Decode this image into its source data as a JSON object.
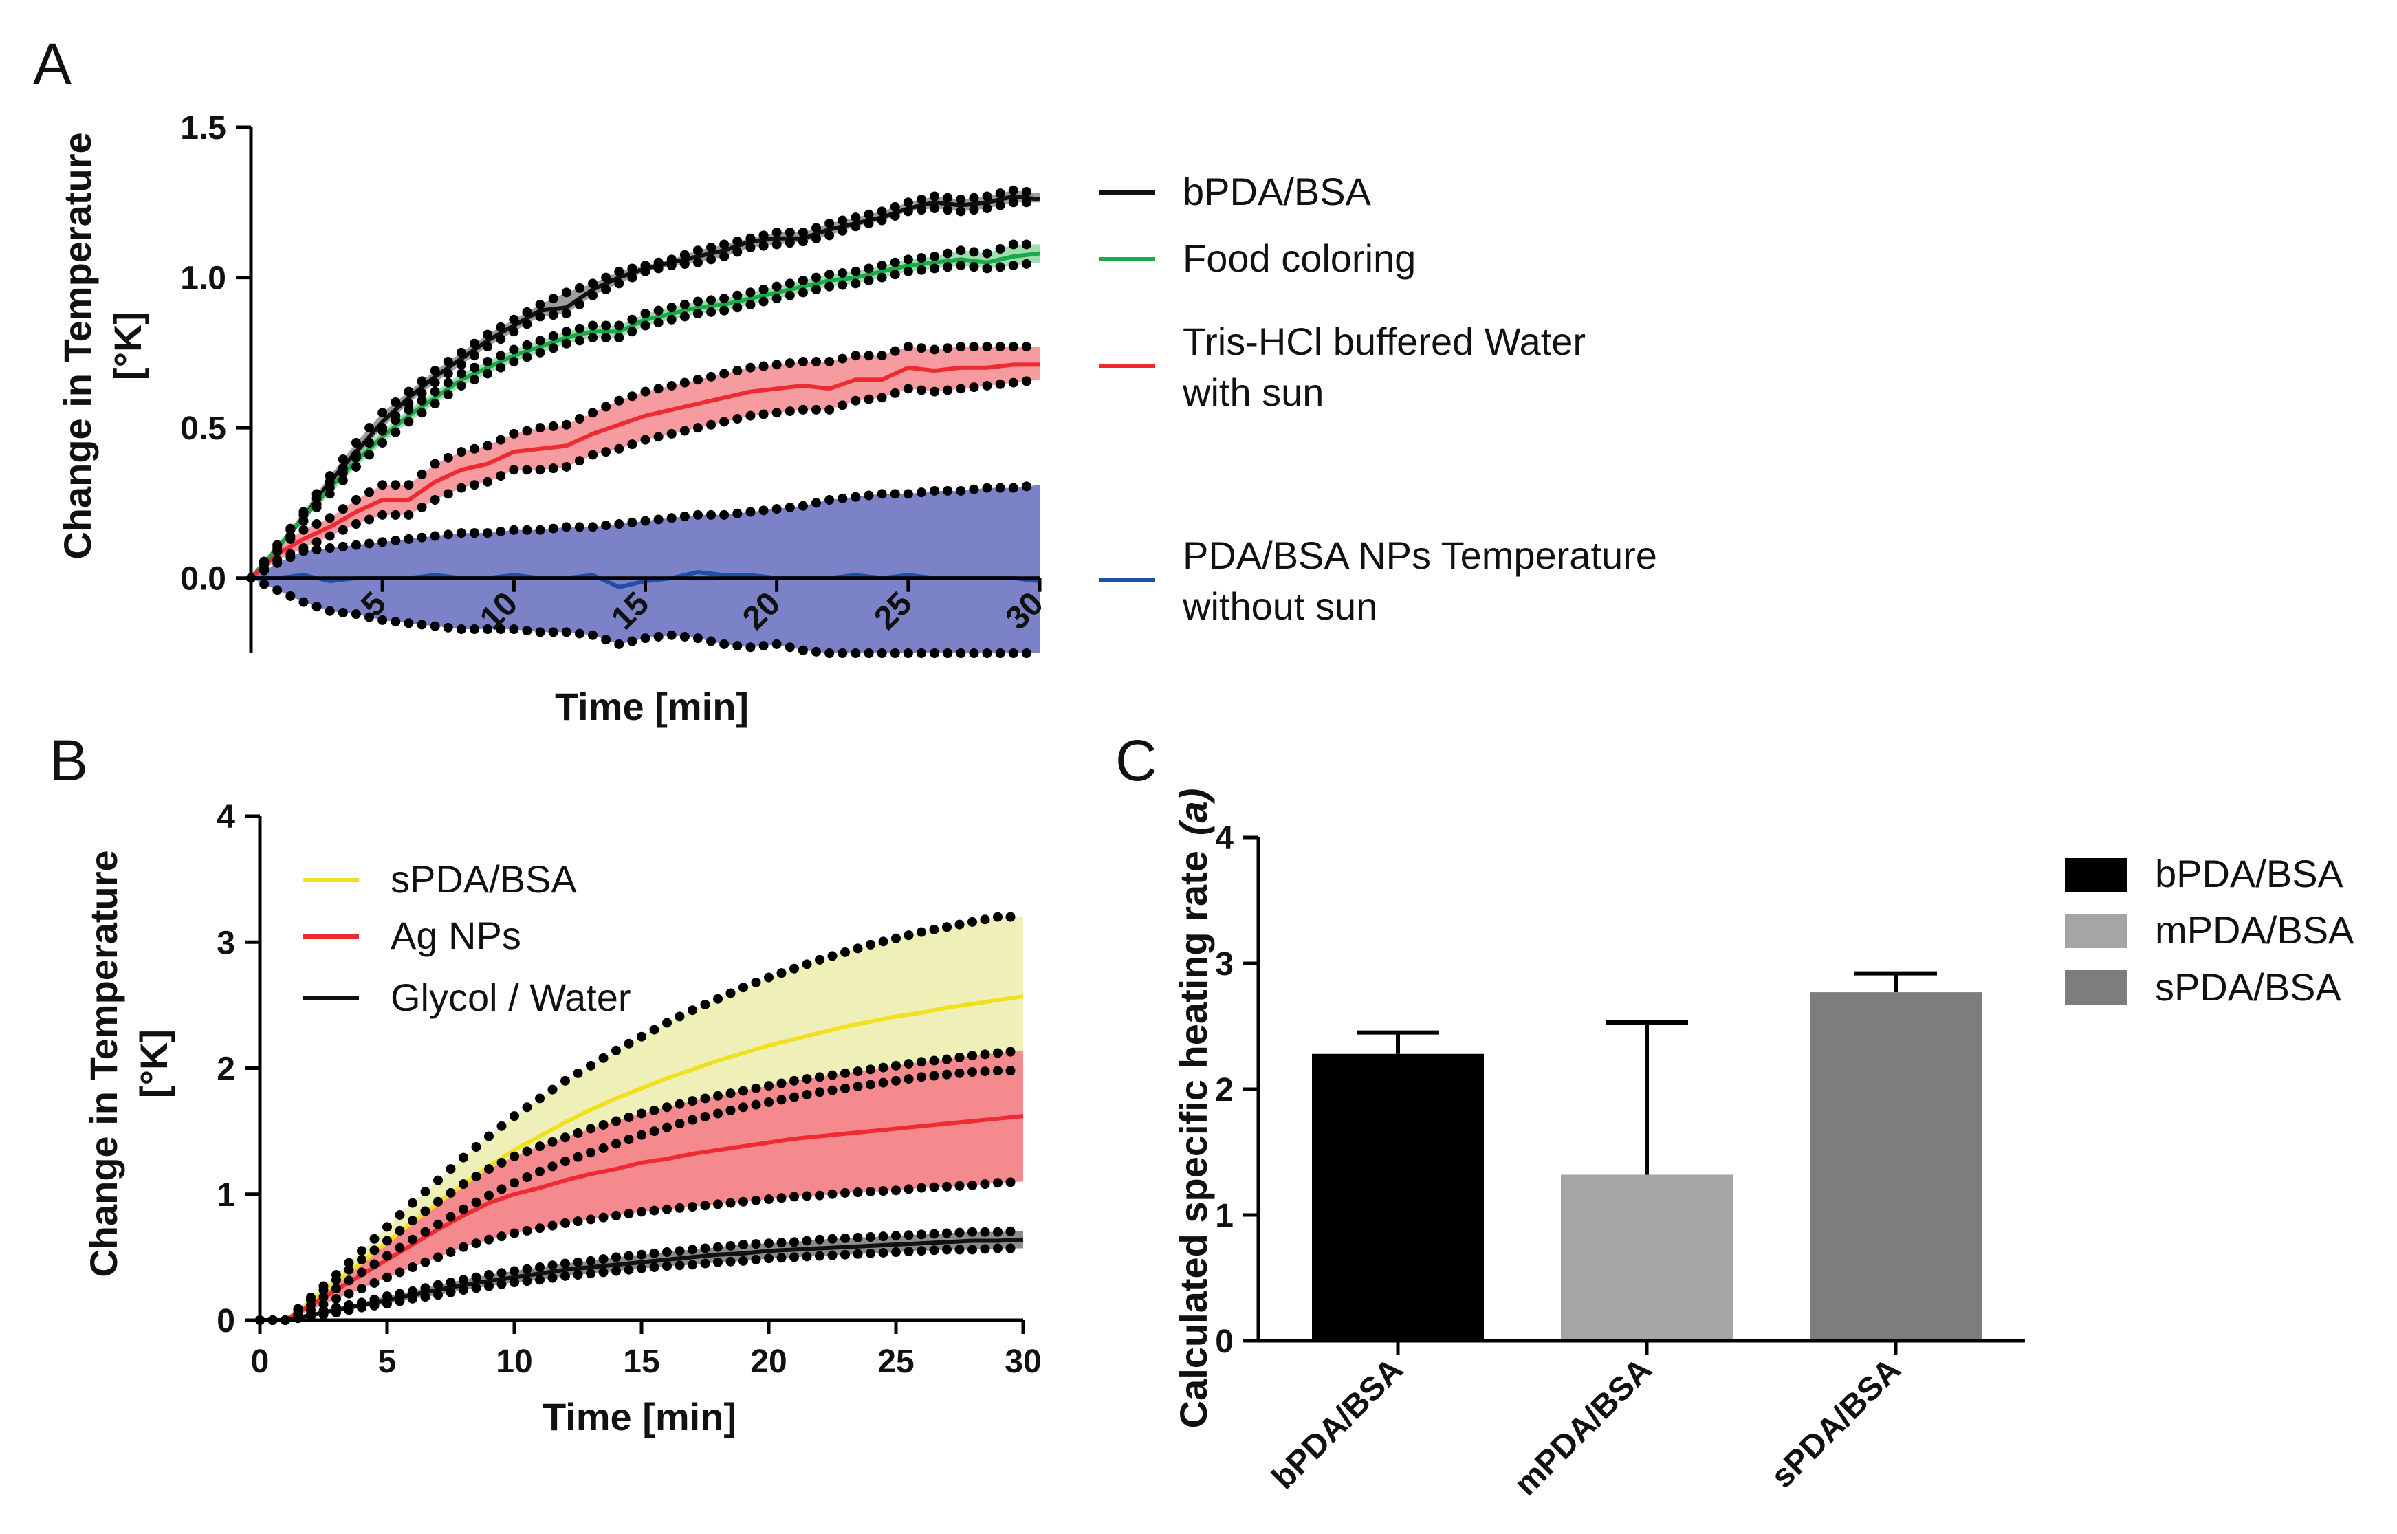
{
  "figure": {
    "panels": {
      "A": "A",
      "B": "B",
      "C": "C"
    },
    "colors": {
      "black": "#111111",
      "green": "#1aaa4a",
      "red": "#ee2a33",
      "blue": "#1f4fa8",
      "blueFill": "#7b82c8",
      "yellow": "#f0e020",
      "yellowFill": "#eef0b8",
      "redFill": "#f58a8e",
      "grayFill": "#8c8c8c",
      "barBlack": "#000000",
      "barLight": "#a5a5a8",
      "barDark": "#7d7d7d"
    }
  },
  "chart_data": [
    {
      "id": "A",
      "type": "line",
      "title": "",
      "xlabel": "Time [min]",
      "ylabel_line1": "Change in Temperature",
      "ylabel_line2": "[°K]",
      "xlim": [
        0,
        30
      ],
      "ylim": [
        -0.25,
        1.5
      ],
      "yticks": [
        0.0,
        0.5,
        1.0,
        1.5
      ],
      "yticklabels": [
        "0.0",
        "0.5",
        "1.0",
        "1.5"
      ],
      "xticks": [
        5,
        10,
        15,
        20,
        25,
        30
      ],
      "xticklabels": [
        "5",
        "10",
        "15",
        "20",
        "25",
        "30"
      ],
      "x": [
        0,
        1,
        2,
        3,
        4,
        5,
        6,
        7,
        8,
        9,
        10,
        11,
        12,
        13,
        14,
        15,
        16,
        17,
        18,
        19,
        20,
        21,
        22,
        23,
        24,
        25,
        26,
        27,
        28,
        29,
        30
      ],
      "series": [
        {
          "name": "bPDA/BSA",
          "legend": "bPDA/BSA",
          "color": "#111111",
          "fill": "#8c8c8c",
          "values": [
            0.0,
            0.1,
            0.2,
            0.32,
            0.42,
            0.52,
            0.6,
            0.67,
            0.73,
            0.79,
            0.84,
            0.89,
            0.9,
            0.96,
            1.0,
            1.03,
            1.05,
            1.07,
            1.09,
            1.12,
            1.13,
            1.13,
            1.16,
            1.18,
            1.2,
            1.23,
            1.25,
            1.24,
            1.25,
            1.27,
            1.26
          ],
          "lower": [
            0.0,
            0.09,
            0.19,
            0.3,
            0.4,
            0.5,
            0.58,
            0.65,
            0.71,
            0.77,
            0.82,
            0.87,
            0.88,
            0.94,
            0.98,
            1.02,
            1.04,
            1.05,
            1.07,
            1.1,
            1.11,
            1.12,
            1.14,
            1.17,
            1.19,
            1.22,
            1.23,
            1.22,
            1.23,
            1.25,
            1.25
          ],
          "upper": [
            0.0,
            0.11,
            0.22,
            0.34,
            0.45,
            0.55,
            0.62,
            0.69,
            0.75,
            0.81,
            0.86,
            0.91,
            0.95,
            0.98,
            1.02,
            1.04,
            1.06,
            1.09,
            1.11,
            1.13,
            1.15,
            1.15,
            1.18,
            1.2,
            1.22,
            1.25,
            1.27,
            1.26,
            1.27,
            1.29,
            1.28
          ]
        },
        {
          "name": "Food coloring",
          "legend": "Food coloring",
          "color": "#1aaa4a",
          "fill": "#5cc874",
          "values": [
            0.0,
            0.1,
            0.2,
            0.3,
            0.39,
            0.47,
            0.54,
            0.6,
            0.66,
            0.7,
            0.74,
            0.77,
            0.8,
            0.82,
            0.82,
            0.86,
            0.88,
            0.9,
            0.91,
            0.93,
            0.95,
            0.97,
            0.99,
            1.0,
            1.02,
            1.04,
            1.05,
            1.06,
            1.05,
            1.07,
            1.08
          ],
          "lower": [
            0.0,
            0.09,
            0.19,
            0.28,
            0.37,
            0.45,
            0.52,
            0.58,
            0.64,
            0.68,
            0.72,
            0.75,
            0.78,
            0.8,
            0.8,
            0.84,
            0.86,
            0.88,
            0.89,
            0.91,
            0.93,
            0.95,
            0.97,
            0.98,
            1.0,
            1.02,
            1.03,
            1.04,
            1.03,
            1.04,
            1.05
          ],
          "upper": [
            0.0,
            0.11,
            0.21,
            0.32,
            0.41,
            0.49,
            0.56,
            0.62,
            0.68,
            0.72,
            0.76,
            0.79,
            0.82,
            0.84,
            0.84,
            0.88,
            0.9,
            0.92,
            0.93,
            0.95,
            0.97,
            0.99,
            1.01,
            1.02,
            1.04,
            1.06,
            1.07,
            1.09,
            1.08,
            1.11,
            1.11
          ]
        },
        {
          "name": "Tris-HCl buffered Water with sun",
          "legend": "Tris-HCl buffered Water",
          "legend2": "with sun",
          "color": "#ee2a33",
          "fill": "#f58a8e",
          "values": [
            0.0,
            0.08,
            0.13,
            0.17,
            0.22,
            0.26,
            0.26,
            0.32,
            0.36,
            0.38,
            0.42,
            0.43,
            0.44,
            0.48,
            0.51,
            0.54,
            0.56,
            0.58,
            0.6,
            0.62,
            0.63,
            0.64,
            0.63,
            0.66,
            0.66,
            0.7,
            0.69,
            0.7,
            0.7,
            0.71,
            0.71
          ],
          "lower": [
            0.0,
            0.06,
            0.1,
            0.14,
            0.18,
            0.21,
            0.21,
            0.26,
            0.3,
            0.32,
            0.36,
            0.36,
            0.37,
            0.41,
            0.43,
            0.46,
            0.48,
            0.5,
            0.52,
            0.54,
            0.55,
            0.56,
            0.56,
            0.59,
            0.6,
            0.63,
            0.62,
            0.63,
            0.64,
            0.65,
            0.66
          ],
          "upper": [
            0.0,
            0.1,
            0.16,
            0.2,
            0.26,
            0.31,
            0.31,
            0.38,
            0.42,
            0.44,
            0.48,
            0.5,
            0.51,
            0.55,
            0.59,
            0.62,
            0.64,
            0.66,
            0.68,
            0.7,
            0.71,
            0.72,
            0.72,
            0.74,
            0.74,
            0.77,
            0.76,
            0.77,
            0.77,
            0.77,
            0.77
          ]
        },
        {
          "name": "PDA/BSA NPs Temperature without sun",
          "legend": "PDA/BSA NPs Temperature",
          "legend2": "without sun",
          "color": "#1f4fa8",
          "fill": "#7b82c8",
          "values": [
            0.0,
            0.0,
            0.01,
            -0.01,
            0.0,
            0.0,
            0.0,
            0.01,
            0.0,
            0.0,
            0.01,
            0.0,
            0.0,
            0.01,
            -0.03,
            -0.01,
            0.0,
            0.02,
            0.01,
            0.01,
            0.0,
            0.0,
            0.0,
            0.01,
            0.0,
            0.01,
            0.0,
            0.0,
            0.0,
            0.0,
            -0.01
          ],
          "lower": [
            0.0,
            -0.04,
            -0.08,
            -0.11,
            -0.12,
            -0.14,
            -0.15,
            -0.16,
            -0.17,
            -0.17,
            -0.17,
            -0.18,
            -0.18,
            -0.19,
            -0.22,
            -0.2,
            -0.19,
            -0.2,
            -0.22,
            -0.23,
            -0.22,
            -0.24,
            -0.25,
            -0.25,
            -0.25,
            -0.25,
            -0.25,
            -0.25,
            -0.25,
            -0.25,
            -0.25
          ],
          "upper": [
            0.0,
            0.05,
            0.09,
            0.1,
            0.11,
            0.12,
            0.13,
            0.14,
            0.15,
            0.15,
            0.16,
            0.16,
            0.17,
            0.17,
            0.18,
            0.19,
            0.2,
            0.21,
            0.21,
            0.22,
            0.23,
            0.24,
            0.26,
            0.27,
            0.28,
            0.28,
            0.29,
            0.29,
            0.3,
            0.3,
            0.31
          ]
        }
      ]
    },
    {
      "id": "B",
      "type": "line",
      "title": "",
      "xlabel": "Time [min]",
      "ylabel_line1": "Change in Temperature",
      "ylabel_line2": "[°K]",
      "xlim": [
        0,
        30
      ],
      "ylim": [
        0,
        4
      ],
      "yticks": [
        0,
        1,
        2,
        3,
        4
      ],
      "yticklabels": [
        "0",
        "1",
        "2",
        "3",
        "4"
      ],
      "xticks": [
        0,
        5,
        10,
        15,
        20,
        25,
        30
      ],
      "xticklabels": [
        "0",
        "5",
        "10",
        "15",
        "20",
        "25",
        "30"
      ],
      "x": [
        0,
        1,
        2,
        3,
        4,
        5,
        6,
        7,
        8,
        9,
        10,
        11,
        12,
        13,
        14,
        15,
        16,
        17,
        18,
        19,
        20,
        21,
        22,
        23,
        24,
        25,
        26,
        27,
        28,
        29,
        30
      ],
      "series": [
        {
          "name": "sPDA/BSA",
          "legend": "sPDA/BSA",
          "color": "#f0e020",
          "fill": "#eef0b8",
          "values": [
            0.0,
            0.0,
            0.15,
            0.3,
            0.46,
            0.62,
            0.78,
            0.93,
            1.08,
            1.22,
            1.35,
            1.46,
            1.57,
            1.67,
            1.76,
            1.84,
            1.92,
            1.99,
            2.06,
            2.12,
            2.18,
            2.23,
            2.28,
            2.33,
            2.37,
            2.41,
            2.44,
            2.48,
            2.51,
            2.54,
            2.57
          ],
          "lower": [
            0.0,
            0.0,
            0.12,
            0.25,
            0.38,
            0.51,
            0.64,
            0.76,
            0.88,
            0.99,
            1.09,
            1.18,
            1.26,
            1.33,
            1.4,
            1.47,
            1.53,
            1.59,
            1.64,
            1.69,
            1.73,
            1.77,
            1.81,
            1.84,
            1.87,
            1.9,
            1.93,
            1.95,
            1.97,
            1.98,
            1.98
          ],
          "upper": [
            0.0,
            0.0,
            0.18,
            0.36,
            0.55,
            0.74,
            0.93,
            1.11,
            1.29,
            1.46,
            1.62,
            1.76,
            1.9,
            2.02,
            2.14,
            2.25,
            2.36,
            2.46,
            2.55,
            2.64,
            2.72,
            2.79,
            2.86,
            2.92,
            2.98,
            3.03,
            3.08,
            3.12,
            3.16,
            3.2,
            3.2
          ]
        },
        {
          "name": "Ag NPs",
          "legend": "Ag NPs",
          "color": "#ee2a33",
          "fill": "#f58a8e",
          "values": [
            0.0,
            0.0,
            0.12,
            0.24,
            0.36,
            0.48,
            0.6,
            0.72,
            0.83,
            0.93,
            1.0,
            1.05,
            1.11,
            1.16,
            1.2,
            1.25,
            1.28,
            1.32,
            1.35,
            1.38,
            1.41,
            1.44,
            1.46,
            1.48,
            1.5,
            1.52,
            1.54,
            1.56,
            1.58,
            1.6,
            1.62
          ],
          "lower": [
            0.0,
            0.0,
            0.08,
            0.17,
            0.25,
            0.34,
            0.42,
            0.5,
            0.58,
            0.64,
            0.69,
            0.73,
            0.77,
            0.8,
            0.83,
            0.86,
            0.88,
            0.9,
            0.92,
            0.94,
            0.96,
            0.98,
            0.99,
            1.01,
            1.02,
            1.03,
            1.05,
            1.06,
            1.07,
            1.09,
            1.1
          ],
          "upper": [
            0.0,
            0.0,
            0.16,
            0.32,
            0.48,
            0.63,
            0.79,
            0.94,
            1.08,
            1.2,
            1.3,
            1.38,
            1.45,
            1.52,
            1.58,
            1.64,
            1.69,
            1.74,
            1.78,
            1.82,
            1.86,
            1.9,
            1.93,
            1.96,
            1.99,
            2.02,
            2.05,
            2.07,
            2.1,
            2.12,
            2.14
          ]
        },
        {
          "name": "Glycol / Water",
          "legend": "Glycol / Water",
          "color": "#111111",
          "fill": "#8c8c8c",
          "values": [
            0.0,
            0.0,
            0.04,
            0.08,
            0.12,
            0.16,
            0.2,
            0.24,
            0.28,
            0.31,
            0.34,
            0.37,
            0.4,
            0.42,
            0.44,
            0.46,
            0.48,
            0.5,
            0.52,
            0.53,
            0.55,
            0.56,
            0.57,
            0.58,
            0.59,
            0.6,
            0.61,
            0.62,
            0.63,
            0.63,
            0.64
          ],
          "lower": [
            0.0,
            0.0,
            0.03,
            0.06,
            0.1,
            0.13,
            0.17,
            0.2,
            0.24,
            0.27,
            0.3,
            0.32,
            0.35,
            0.37,
            0.39,
            0.41,
            0.43,
            0.44,
            0.46,
            0.47,
            0.49,
            0.5,
            0.51,
            0.52,
            0.53,
            0.54,
            0.55,
            0.56,
            0.56,
            0.57,
            0.57
          ],
          "upper": [
            0.0,
            0.0,
            0.05,
            0.1,
            0.14,
            0.19,
            0.23,
            0.28,
            0.32,
            0.36,
            0.39,
            0.42,
            0.45,
            0.47,
            0.5,
            0.52,
            0.54,
            0.56,
            0.58,
            0.6,
            0.61,
            0.62,
            0.64,
            0.65,
            0.66,
            0.67,
            0.68,
            0.69,
            0.7,
            0.7,
            0.71
          ]
        }
      ]
    },
    {
      "id": "C",
      "type": "bar",
      "title": "",
      "xlabel": "",
      "ylabel": "Calculated specific heating rate",
      "ylabel_italic": "(a)",
      "ylim": [
        0,
        4
      ],
      "yticks": [
        0,
        1,
        2,
        3,
        4
      ],
      "yticklabels": [
        "0",
        "1",
        "2",
        "3",
        "4"
      ],
      "categories": [
        "bPDA/BSA",
        "mPDA/BSA",
        "sPDA/BSA"
      ],
      "values": [
        2.28,
        1.32,
        2.77
      ],
      "error_upper": [
        0.17,
        1.21,
        0.15
      ],
      "colors": [
        "#000000",
        "#a5a5a8",
        "#7d7d7d"
      ],
      "legend": [
        "bPDA/BSA",
        "mPDA/BSA",
        "sPDA/BSA"
      ]
    }
  ]
}
